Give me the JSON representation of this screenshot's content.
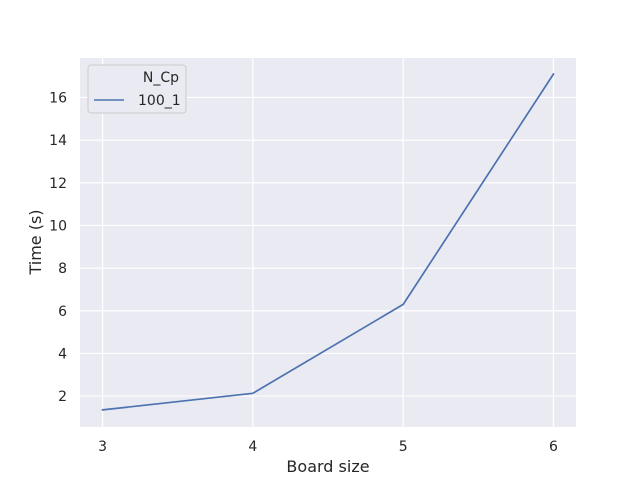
{
  "chart_data": {
    "type": "line",
    "xlabel": "Board size",
    "ylabel": "Time (s)",
    "x": [
      3,
      4,
      5,
      6
    ],
    "xticks": [
      "3",
      "4",
      "5",
      "6"
    ],
    "yticks": [
      "2",
      "4",
      "6",
      "8",
      "10",
      "12",
      "14",
      "16"
    ],
    "xlim": [
      2.85,
      6.15
    ],
    "ylim": [
      0.55,
      17.85
    ],
    "grid": true,
    "legend": {
      "title": "N_Cp",
      "placement": "top-left"
    },
    "series": [
      {
        "name": "100_1",
        "values": [
          1.35,
          2.13,
          6.3,
          17.1
        ],
        "color": "#4c72b0"
      }
    ],
    "colors": {
      "plot_background": "#eaeaf2",
      "grid": "#ffffff"
    }
  }
}
